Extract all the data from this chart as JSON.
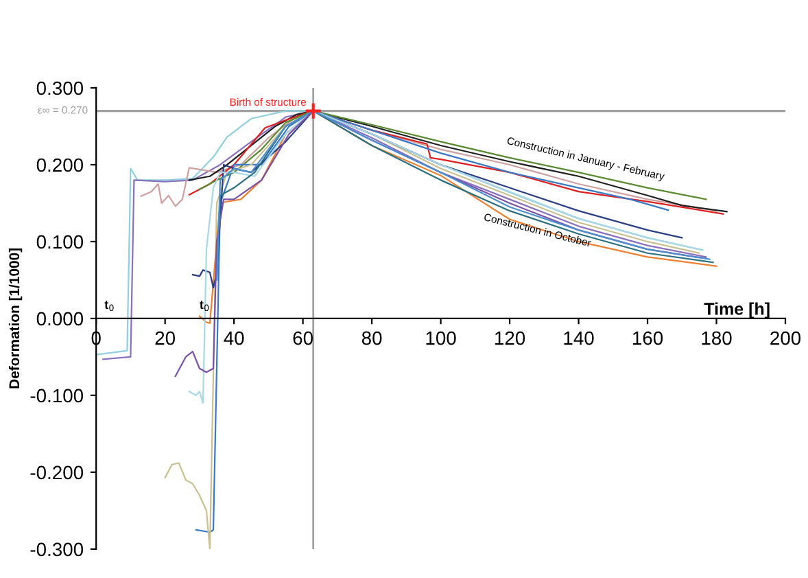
{
  "chart_data": {
    "type": "line",
    "xlabel": "Time [h]",
    "ylabel": "Deformation [1/1000]",
    "xlim": [
      0,
      200
    ],
    "xticks": [
      0,
      20,
      40,
      60,
      80,
      100,
      120,
      140,
      160,
      180,
      200
    ],
    "ylim": [
      -0.3,
      0.3
    ],
    "yticks": [
      {
        "value": -0.3,
        "label": "-0.300"
      },
      {
        "value": -0.2,
        "label": "-0.200"
      },
      {
        "value": -0.1,
        "label": "-0.100"
      },
      {
        "value": 0,
        "label": "0.000"
      },
      {
        "value": 0.1,
        "label": "0.100"
      },
      {
        "value": 0.2,
        "label": "0.200"
      },
      {
        "value": 0.3,
        "label": "0.300"
      }
    ],
    "grid": false,
    "marker": "none",
    "line_style": "solid",
    "ref_lines": [
      {
        "axis": "y",
        "value": 0.27,
        "label": "ε∞ = 0.270",
        "color": "#a0a0a0"
      },
      {
        "axis": "x",
        "value": 63,
        "color": "#a0a0a0"
      }
    ],
    "annotations": [
      {
        "text": "Birth of structure",
        "x": 63,
        "y": 0.27
      },
      "t$_{0}$",
      "t$_{0}$",
      "Construction in January - February",
      "Construction in October"
    ],
    "series": [
      {
        "color": "#8fcfe0",
        "x": [
          0,
          9,
          10,
          12,
          20,
          28,
          34,
          38,
          45,
          55,
          63,
          80,
          100,
          120,
          140,
          160,
          176
        ],
        "values": [
          -0.047,
          -0.042,
          0.195,
          0.18,
          0.18,
          0.182,
          0.21,
          0.236,
          0.26,
          0.27,
          0.27,
          0.24,
          0.2,
          0.164,
          0.13,
          0.105,
          0.089
        ]
      },
      {
        "color": "#8a70c0",
        "x": [
          2,
          10,
          11,
          20,
          28,
          36,
          45,
          55,
          63,
          80,
          100,
          120,
          140,
          160,
          177
        ],
        "values": [
          -0.053,
          -0.05,
          0.18,
          0.178,
          0.18,
          0.2,
          0.23,
          0.262,
          0.27,
          0.235,
          0.19,
          0.155,
          0.12,
          0.095,
          0.08
        ]
      },
      {
        "color": "#d0a0a0",
        "x": [
          13,
          16,
          18,
          19,
          21,
          23,
          25,
          27,
          35,
          42,
          50,
          58,
          63,
          80,
          100,
          120,
          140,
          160,
          180
        ],
        "values": [
          0.159,
          0.165,
          0.175,
          0.15,
          0.16,
          0.146,
          0.155,
          0.196,
          0.19,
          0.2,
          0.235,
          0.262,
          0.27,
          0.245,
          0.22,
          0.2,
          0.175,
          0.155,
          0.14
        ]
      },
      {
        "color": "#202020",
        "x": [
          27,
          33,
          38,
          45,
          52,
          58,
          63,
          80,
          100,
          120,
          140,
          160,
          170,
          183
        ],
        "values": [
          0.18,
          0.185,
          0.2,
          0.225,
          0.25,
          0.265,
          0.27,
          0.25,
          0.225,
          0.204,
          0.185,
          0.16,
          0.147,
          0.139
        ]
      },
      {
        "color": "#e02020",
        "x": [
          27,
          33,
          40,
          49,
          55,
          63,
          80,
          96,
          97,
          100,
          120,
          140,
          160,
          182
        ],
        "values": [
          0.161,
          0.175,
          0.2,
          0.248,
          0.258,
          0.27,
          0.245,
          0.227,
          0.209,
          0.207,
          0.19,
          0.165,
          0.152,
          0.136
        ]
      },
      {
        "color": "#5a8a30",
        "x": [
          30,
          35,
          40,
          48,
          55,
          63,
          80,
          100,
          120,
          140,
          160,
          177
        ],
        "values": [
          0.168,
          0.18,
          0.19,
          0.22,
          0.255,
          0.27,
          0.252,
          0.23,
          0.209,
          0.19,
          0.17,
          0.155
        ]
      },
      {
        "color": "#3a78c8",
        "x": [
          29,
          33,
          34,
          36,
          40,
          48,
          56,
          63,
          80,
          100,
          120,
          140,
          155,
          166
        ],
        "values": [
          -0.275,
          -0.278,
          -0.275,
          0.15,
          0.2,
          0.2,
          0.25,
          0.27,
          0.245,
          0.215,
          0.19,
          0.17,
          0.155,
          0.141
        ]
      },
      {
        "color": "#c8c090",
        "x": [
          20,
          22,
          24,
          26,
          28,
          30,
          32,
          33,
          35,
          38,
          45,
          55,
          63,
          80,
          100,
          120,
          140,
          160,
          175
        ],
        "values": [
          -0.207,
          -0.19,
          -0.188,
          -0.21,
          -0.215,
          -0.23,
          -0.25,
          -0.3,
          0.15,
          0.19,
          0.2,
          0.25,
          0.27,
          0.24,
          0.195,
          0.16,
          0.125,
          0.1,
          0.085
        ]
      },
      {
        "color": "#f08030",
        "x": [
          30,
          32,
          33,
          35,
          36,
          38,
          42,
          48,
          55,
          63,
          80,
          100,
          120,
          140,
          160,
          180
        ],
        "values": [
          0.003,
          -0.005,
          -0.006,
          0.1,
          0.15,
          0.152,
          0.155,
          0.18,
          0.24,
          0.27,
          0.225,
          0.186,
          0.129,
          0.1,
          0.08,
          0.068
        ]
      },
      {
        "color": "#2a3f85",
        "x": [
          28,
          30,
          31,
          33,
          34,
          35,
          37,
          40,
          45,
          55,
          63,
          80,
          100,
          120,
          140,
          160,
          170
        ],
        "values": [
          0.057,
          0.055,
          0.063,
          0.06,
          0.04,
          0.06,
          0.2,
          0.195,
          0.19,
          0.23,
          0.27,
          0.24,
          0.2,
          0.17,
          0.14,
          0.115,
          0.105
        ]
      },
      {
        "color": "#a8d8e8",
        "x": [
          27,
          29,
          30,
          31,
          32,
          34,
          36,
          40,
          46,
          55,
          63,
          80,
          100,
          120,
          140,
          160,
          175
        ],
        "values": [
          -0.095,
          -0.1,
          -0.095,
          -0.11,
          0.09,
          0.17,
          0.19,
          0.19,
          0.185,
          0.24,
          0.27,
          0.24,
          0.2,
          0.165,
          0.13,
          0.105,
          0.09
        ]
      },
      {
        "color": "#7a50a8",
        "x": [
          23,
          26,
          28,
          30,
          32,
          34,
          35,
          37,
          40,
          48,
          56,
          63,
          80,
          100,
          120,
          140,
          160,
          177
        ],
        "values": [
          -0.075,
          -0.05,
          -0.043,
          -0.065,
          -0.07,
          -0.065,
          0.1,
          0.155,
          0.155,
          0.18,
          0.24,
          0.27,
          0.232,
          0.19,
          0.15,
          0.115,
          0.09,
          0.078
        ]
      },
      {
        "color": "#2a7080",
        "x": [
          35,
          36,
          40,
          46,
          55,
          63,
          80,
          100,
          120,
          140,
          160,
          179
        ],
        "values": [
          0.05,
          0.16,
          0.17,
          0.19,
          0.25,
          0.27,
          0.225,
          0.18,
          0.14,
          0.11,
          0.085,
          0.073
        ]
      },
      {
        "color": "#4a90d0",
        "x": [
          35,
          36,
          40,
          45,
          55,
          63,
          80,
          100,
          120,
          140,
          160,
          178
        ],
        "values": [
          0.05,
          0.18,
          0.195,
          0.19,
          0.25,
          0.27,
          0.232,
          0.19,
          0.145,
          0.115,
          0.09,
          0.077
        ]
      }
    ]
  }
}
